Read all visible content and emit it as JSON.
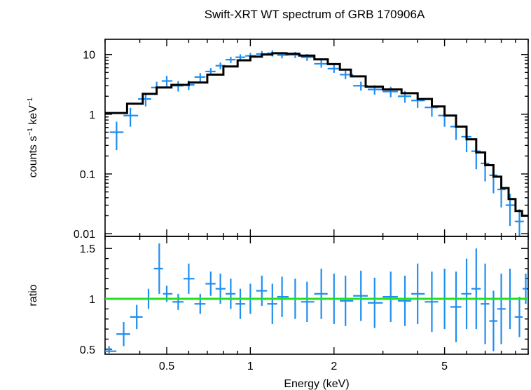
{
  "chart_data": [
    {
      "panel": "spectrum",
      "type": "scatter",
      "title": "Swift-XRT WT spectrum of GRB 170906A",
      "xlabel": "Energy (keV)",
      "ylabel_parts": [
        "counts s",
        "−1",
        " keV",
        "−1"
      ],
      "xscale": "log",
      "yscale": "log",
      "xlim": [
        0.3,
        10
      ],
      "ylim": [
        0.009,
        18
      ],
      "x_ticks": [
        0.5,
        1,
        2,
        5
      ],
      "y_ticks": [
        0.01,
        0.1,
        1,
        10
      ],
      "y_tick_labels": [
        "0.01",
        "0.1",
        "1",
        "10"
      ],
      "colors": {
        "data": "#1f8ef0",
        "model": "#000000"
      },
      "series": [
        {
          "kind": "data",
          "x": [
            0.33,
            0.37,
            0.42,
            0.46,
            0.5,
            0.55,
            0.6,
            0.66,
            0.72,
            0.78,
            0.85,
            0.92,
            1.0,
            1.1,
            1.2,
            1.3,
            1.45,
            1.6,
            1.8,
            2.0,
            2.2,
            2.5,
            2.8,
            3.2,
            3.6,
            4.0,
            4.5,
            5.0,
            5.5,
            6.0,
            6.5,
            7.0,
            7.5,
            8.0,
            8.6,
            9.3
          ],
          "y": [
            0.5,
            0.95,
            1.8,
            2.8,
            3.6,
            3.0,
            3.1,
            4.2,
            5.2,
            6.5,
            8.2,
            9.0,
            9.5,
            10.2,
            10.5,
            9.8,
            9.9,
            9.0,
            7.0,
            5.8,
            4.6,
            3.0,
            2.6,
            2.4,
            2.0,
            1.7,
            1.3,
            0.95,
            0.62,
            0.42,
            0.24,
            0.15,
            0.095,
            0.055,
            0.03,
            0.016
          ],
          "yerr_frac": [
            0.5,
            0.35,
            0.25,
            0.25,
            0.22,
            0.2,
            0.18,
            0.16,
            0.14,
            0.13,
            0.12,
            0.12,
            0.12,
            0.12,
            0.12,
            0.12,
            0.12,
            0.13,
            0.14,
            0.15,
            0.16,
            0.17,
            0.18,
            0.2,
            0.22,
            0.25,
            0.3,
            0.35,
            0.4,
            0.45,
            0.5,
            0.5,
            0.5,
            0.5,
            0.55,
            0.6
          ]
        },
        {
          "kind": "model",
          "x": [
            0.3,
            0.32,
            0.36,
            0.41,
            0.46,
            0.52,
            0.6,
            0.7,
            0.8,
            0.9,
            1.0,
            1.1,
            1.2,
            1.35,
            1.5,
            1.7,
            1.9,
            2.1,
            2.3,
            2.6,
            3.0,
            3.5,
            4.0,
            4.5,
            5.0,
            5.5,
            6.0,
            6.5,
            7.0,
            7.5,
            8.0,
            8.5,
            9.0,
            9.5,
            10.0
          ],
          "y": [
            1.05,
            1.05,
            1.5,
            2.2,
            2.8,
            3.1,
            3.4,
            4.6,
            6.3,
            8.0,
            9.2,
            10.0,
            10.5,
            10.3,
            9.6,
            8.3,
            6.9,
            5.6,
            4.3,
            2.9,
            2.6,
            2.25,
            1.8,
            1.35,
            0.95,
            0.62,
            0.38,
            0.23,
            0.14,
            0.09,
            0.058,
            0.038,
            0.024,
            0.02,
            0.02
          ]
        }
      ]
    },
    {
      "panel": "ratio",
      "type": "scatter",
      "xlabel": "Energy (keV)",
      "ylabel": "ratio",
      "xscale": "log",
      "xlim": [
        0.3,
        10
      ],
      "ylim": [
        0.45,
        1.62
      ],
      "x_ticks": [
        0.5,
        1,
        2,
        5
      ],
      "x_tick_labels": [
        "0.5",
        "1",
        "2",
        "5"
      ],
      "y_ticks": [
        0.5,
        1,
        1.5
      ],
      "y_tick_labels": [
        "0.5",
        "1",
        "1.5"
      ],
      "reference_line": 1,
      "colors": {
        "data": "#1f8ef0",
        "reference": "#22e022"
      },
      "series": [
        {
          "kind": "data",
          "x": [
            0.31,
            0.35,
            0.39,
            0.43,
            0.47,
            0.5,
            0.55,
            0.6,
            0.66,
            0.72,
            0.78,
            0.85,
            0.92,
            1.0,
            1.1,
            1.2,
            1.3,
            1.45,
            1.6,
            1.8,
            2.0,
            2.2,
            2.5,
            2.8,
            3.2,
            3.6,
            4.0,
            4.5,
            5.0,
            5.5,
            6.0,
            6.5,
            7.0,
            7.5,
            8.0,
            8.6,
            9.3,
            9.8
          ],
          "y": [
            0.48,
            0.65,
            0.82,
            1.0,
            1.3,
            1.05,
            0.97,
            1.2,
            0.95,
            1.15,
            1.1,
            1.05,
            0.95,
            1.0,
            1.08,
            0.95,
            1.02,
            1.0,
            0.97,
            1.05,
            1.0,
            0.98,
            1.03,
            0.96,
            1.02,
            0.98,
            1.05,
            0.97,
            1.0,
            0.92,
            1.05,
            1.1,
            0.95,
            0.78,
            0.9,
            1.0,
            0.82,
            1.1
          ],
          "yerr": [
            0.05,
            0.12,
            0.12,
            0.1,
            0.25,
            0.08,
            0.08,
            0.15,
            0.1,
            0.12,
            0.15,
            0.15,
            0.15,
            0.15,
            0.15,
            0.2,
            0.2,
            0.2,
            0.2,
            0.25,
            0.25,
            0.25,
            0.25,
            0.25,
            0.25,
            0.25,
            0.3,
            0.3,
            0.3,
            0.35,
            0.35,
            0.4,
            0.4,
            0.3,
            0.35,
            0.3,
            0.2,
            0.15
          ]
        }
      ]
    }
  ]
}
